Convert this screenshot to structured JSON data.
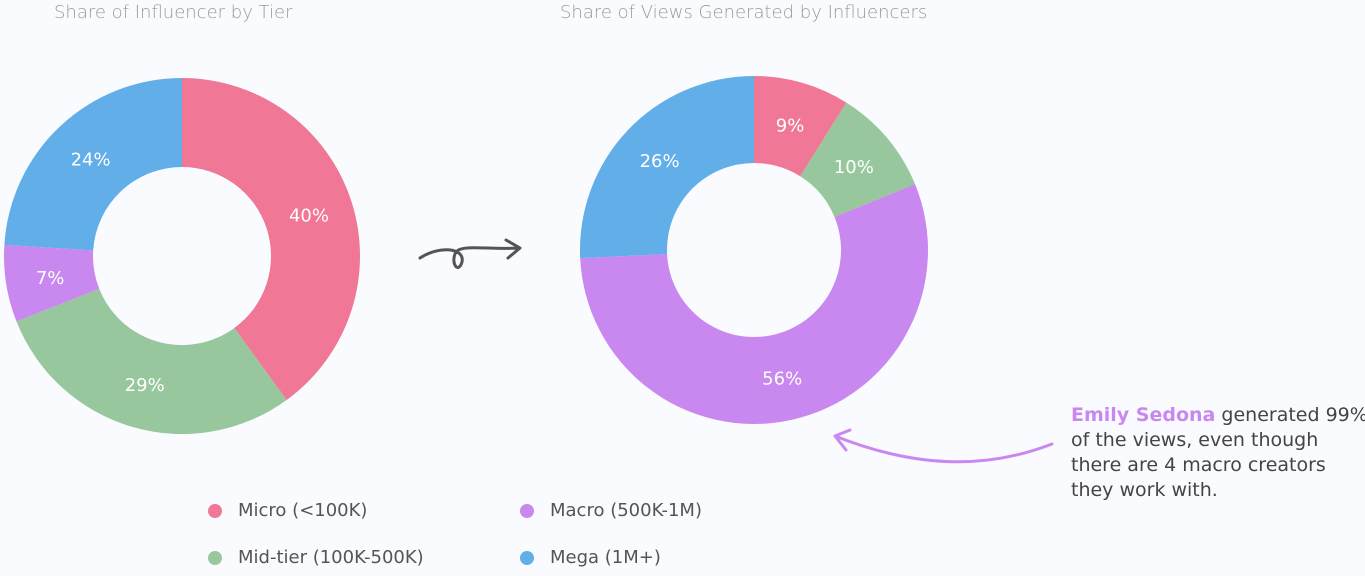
{
  "colors": {
    "Micro": "#F07896",
    "Mid-tier": "#98C79E",
    "Macro": "#C888F0",
    "Mega": "#62AEE8"
  },
  "chart_data": [
    {
      "type": "pie",
      "donut": true,
      "title": "Share of  Influencer by Tier",
      "slices": [
        {
          "category": "Micro",
          "value": 40,
          "label": "40%"
        },
        {
          "category": "Mid-tier",
          "value": 29,
          "label": "29%"
        },
        {
          "category": "Macro",
          "value": 7,
          "label": "7%"
        },
        {
          "category": "Mega",
          "value": 24,
          "label": "24%"
        }
      ]
    },
    {
      "type": "pie",
      "donut": true,
      "title": "Share of Views Generated by Influencers",
      "slices": [
        {
          "category": "Micro",
          "value": 9,
          "label": "9%"
        },
        {
          "category": "Mid-tier",
          "value": 10,
          "label": "10%"
        },
        {
          "category": "Macro",
          "value": 56,
          "label": "56%"
        },
        {
          "category": "Mega",
          "value": 26,
          "label": "26%"
        }
      ]
    }
  ],
  "legend": [
    {
      "category": "Micro",
      "label": "Micro (<100K)"
    },
    {
      "category": "Macro",
      "label": "Macro (500K-1M)"
    },
    {
      "category": "Mid-tier",
      "label": "Mid-tier (100K-500K)"
    },
    {
      "category": "Mega",
      "label": "Mega (1M+)"
    }
  ],
  "annotation": {
    "highlight": "Emily Sedona",
    "text": " generated 99% of the views, even though there are 4 macro creators they work with."
  }
}
